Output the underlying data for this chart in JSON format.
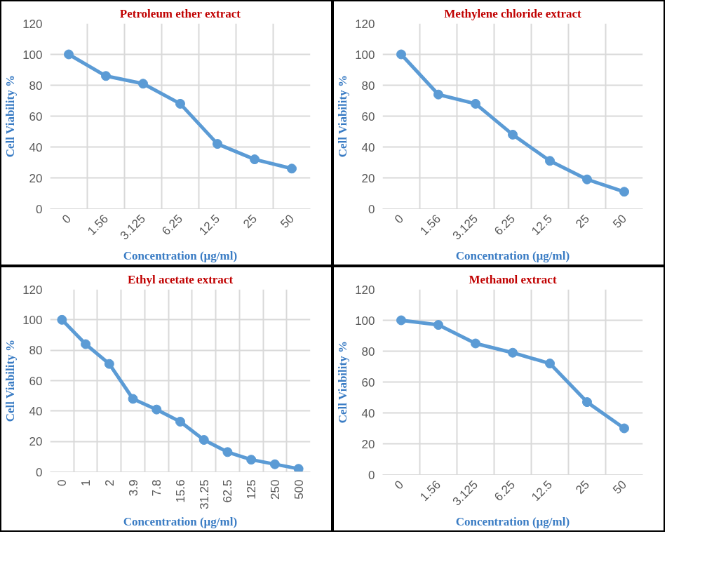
{
  "chart_data": [
    {
      "type": "line",
      "title": "Petroleum ether extract",
      "xlabel": "Concentration (µg/ml)",
      "ylabel": "Cell Viability %",
      "categories": [
        "0",
        "1.56",
        "3.125",
        "6.25",
        "12.5",
        "25",
        "50"
      ],
      "values": [
        100,
        86,
        81,
        68,
        42,
        32,
        26
      ],
      "color": "#5b9bd5",
      "ylim": [
        0,
        120
      ],
      "yticks": [
        0,
        20,
        40,
        60,
        80,
        100,
        120
      ],
      "grid": true,
      "marker": "circle"
    },
    {
      "type": "line",
      "title": "Methylene chloride extract",
      "xlabel": "Concentration (µg/ml)",
      "ylabel": "Cell Viability %",
      "categories": [
        "0",
        "1.56",
        "3.125",
        "6.25",
        "12.5",
        "25",
        "50"
      ],
      "values": [
        100,
        74,
        68,
        48,
        31,
        19,
        11
      ],
      "color": "#5b9bd5",
      "ylim": [
        0,
        120
      ],
      "yticks": [
        0,
        20,
        40,
        60,
        80,
        100,
        120
      ],
      "grid": true,
      "marker": "circle"
    },
    {
      "type": "line",
      "title": "Ethyl acetate extract",
      "xlabel": "Concentration (µg/ml)",
      "ylabel": "Cell Viability %",
      "categories": [
        "0",
        "1",
        "2",
        "3.9",
        "7.8",
        "15.6",
        "31.25",
        "62.5",
        "125",
        "250",
        "500"
      ],
      "values": [
        100,
        84,
        71,
        48,
        41,
        33,
        21,
        13,
        8,
        5,
        2
      ],
      "color": "#5b9bd5",
      "ylim": [
        0,
        120
      ],
      "yticks": [
        0,
        20,
        40,
        60,
        80,
        100,
        120
      ],
      "grid": true,
      "marker": "circle"
    },
    {
      "type": "line",
      "title": "Methanol extract",
      "xlabel": "Concentration (µg/ml)",
      "ylabel": "Cell Viability %",
      "categories": [
        "0",
        "1.56",
        "3.125",
        "6.25",
        "12.5",
        "25",
        "50"
      ],
      "values": [
        100,
        97,
        85,
        79,
        72,
        47,
        30
      ],
      "color": "#5b9bd5",
      "ylim": [
        0,
        120
      ],
      "yticks": [
        0,
        20,
        40,
        60,
        80,
        100,
        120
      ],
      "grid": true,
      "marker": "circle"
    }
  ]
}
